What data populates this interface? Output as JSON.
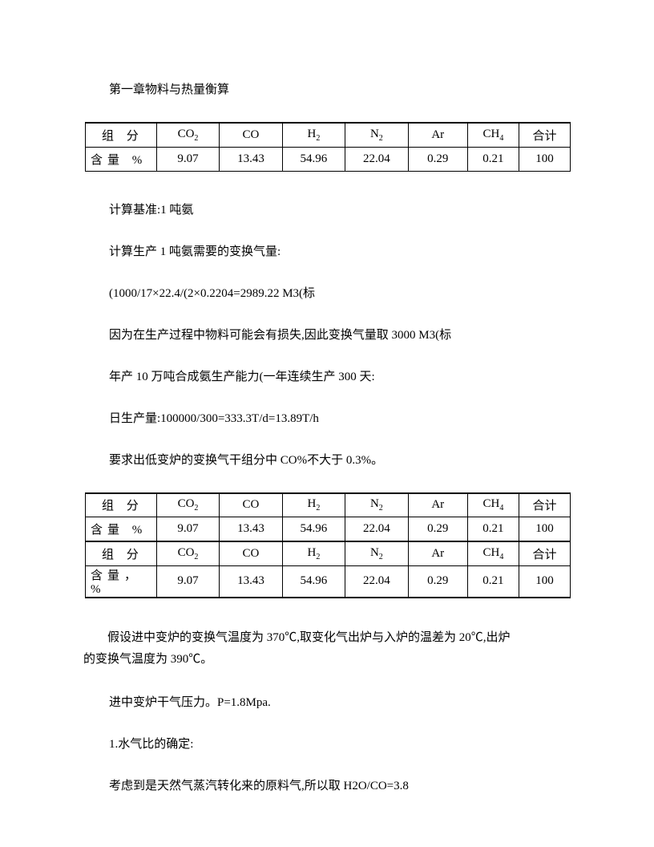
{
  "heading": "第一章物料与热量衡算",
  "table1": {
    "header": {
      "label": "组 分",
      "co2": "CO",
      "co": "CO",
      "h2": "H",
      "n2": "N",
      "ar": "Ar",
      "ch4": "CH",
      "sum": "合计"
    },
    "row": {
      "label": "含量 %",
      "co2": "9.07",
      "co": "13.43",
      "h2": "54.96",
      "n2": "22.04",
      "ar": "0.29",
      "ch4": "0.21",
      "sum": "100"
    }
  },
  "p1": "计算基准:1 吨氨",
  "p2": "计算生产 1 吨氨需要的变换气量:",
  "p3": "(1000/17×22.4/(2×0.2204=2989.22 M3(标",
  "p4": "因为在生产过程中物料可能会有损失,因此变换气量取 3000 M3(标",
  "p5": "年产 10 万吨合成氨生产能力(一年连续生产 300 天:",
  "p6": "日生产量:100000/300=333.3T/d=13.89T/h",
  "p7": "要求出低变炉的变换气干组分中 CO%不大于 0.3%。",
  "table2": {
    "header": {
      "label": "组 分",
      "co2": "CO",
      "co": "CO",
      "h2": "H",
      "n2": "N",
      "ar": "Ar",
      "ch4": "CH",
      "sum": "合计"
    },
    "row": {
      "label": "含量 %",
      "co2": "9.07",
      "co": "13.43",
      "h2": "54.96",
      "n2": "22.04",
      "ar": "0.29",
      "ch4": "0.21",
      "sum": "100"
    }
  },
  "table3": {
    "header": {
      "label": "组 分",
      "co2": "CO",
      "co": "CO",
      "h2": "H",
      "n2": "N",
      "ar": "Ar",
      "ch4": "CH",
      "sum": "合计"
    },
    "row": {
      "label": "含量，%",
      "co2": "9.07",
      "co": "13.43",
      "h2": "54.96",
      "n2": "22.04",
      "ar": "0.29",
      "ch4": "0.21",
      "sum": "100"
    }
  },
  "p8a": "假设进中变炉的变换气温度为 370℃,取变化气出炉与入炉的温差为 20℃,出炉",
  "p8b": "的变换气温度为 390℃。",
  "p9": "进中变炉干气压力。P=1.8Mpa.",
  "p10": "1.水气比的确定:",
  "p11": "考虑到是天然气蒸汽转化来的原料气,所以取 H2O/CO=3.8"
}
